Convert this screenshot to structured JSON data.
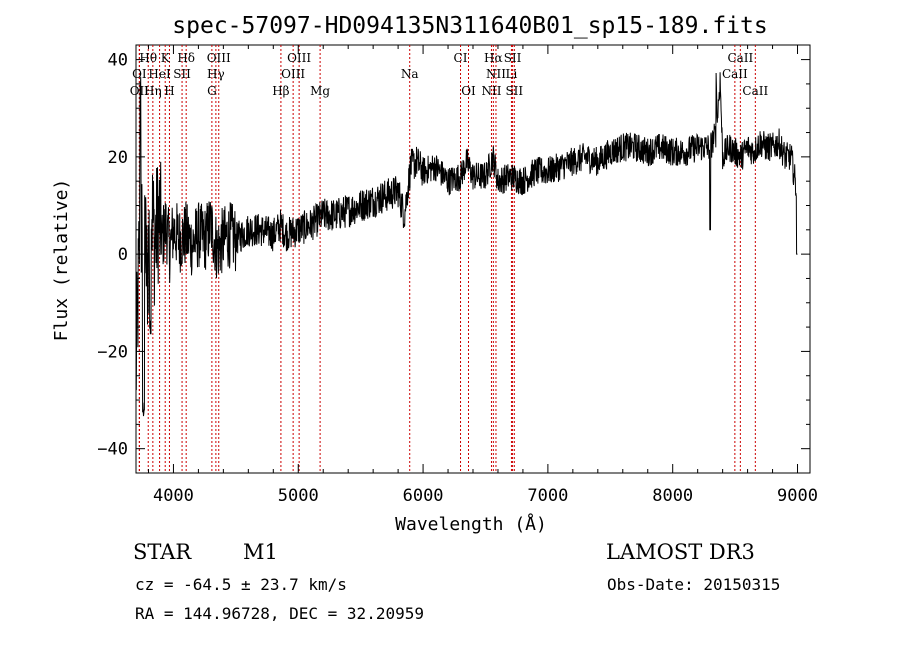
{
  "chart_data": {
    "type": "line",
    "title": "spec-57097-HD094135N311640B01_sp15-189.fits",
    "xlabel": "Wavelength (Å)",
    "ylabel": "Flux (relative)",
    "xlim": [
      3700,
      9100
    ],
    "ylim": [
      -45,
      43
    ],
    "xticks": [
      4000,
      5000,
      6000,
      7000,
      8000,
      9000
    ],
    "yticks": [
      -40,
      -20,
      0,
      20,
      40
    ],
    "grid": false,
    "series": [
      {
        "name": "flux",
        "color": "#000000",
        "x": [
          3700,
          3730,
          3760,
          3790,
          3820,
          3850,
          3880,
          3910,
          3940,
          3970,
          4000,
          4050,
          4100,
          4150,
          4200,
          4250,
          4300,
          4350,
          4400,
          4450,
          4500,
          4600,
          4700,
          4800,
          4860,
          4900,
          5000,
          5100,
          5200,
          5300,
          5400,
          5500,
          5600,
          5700,
          5800,
          5850,
          5900,
          5950,
          6000,
          6100,
          6200,
          6300,
          6350,
          6400,
          6500,
          6560,
          6600,
          6700,
          6800,
          6900,
          7000,
          7100,
          7200,
          7300,
          7400,
          7500,
          7600,
          7700,
          7800,
          7900,
          8000,
          8100,
          8200,
          8300,
          8350,
          8380,
          8400,
          8450,
          8500,
          8550,
          8600,
          8650,
          8700,
          8750,
          8800,
          8850,
          8900,
          8950,
          9000
        ],
        "y": [
          -25,
          5,
          10,
          -5,
          12,
          2,
          8,
          3,
          6,
          1,
          5,
          3,
          4,
          2,
          4,
          3,
          6,
          1,
          3,
          4,
          3,
          5,
          5,
          4,
          6,
          4,
          5,
          6,
          8,
          8,
          9,
          10,
          11,
          12,
          13,
          8,
          18,
          19,
          17,
          18,
          15,
          16,
          19,
          16,
          16,
          20,
          15,
          16,
          15,
          17,
          17,
          18,
          19,
          20,
          19,
          21,
          22,
          22,
          21,
          22,
          21,
          21,
          22,
          22,
          25,
          36,
          20,
          22,
          21,
          20,
          22,
          21,
          23,
          22,
          22,
          23,
          20,
          20,
          12
        ]
      }
    ],
    "spectral_lines": [
      {
        "label": "Hθ",
        "x": 3798,
        "row": 1
      },
      {
        "label": "K",
        "x": 3934,
        "row": 1
      },
      {
        "label": "Hδ",
        "x": 4102,
        "row": 1
      },
      {
        "label": "OIII",
        "x": 4363,
        "row": 1
      },
      {
        "label": "OIII",
        "x": 5007,
        "row": 1
      },
      {
        "label": "CI",
        "x": 6300,
        "row": 1
      },
      {
        "label": "Hα",
        "x": 6563,
        "row": 1
      },
      {
        "label": "SII",
        "x": 6717,
        "row": 1
      },
      {
        "label": "CaII",
        "x": 8542,
        "row": 1
      },
      {
        "label": "OI",
        "x": 3727,
        "row": 2
      },
      {
        "label": "HeI",
        "x": 3889,
        "row": 2
      },
      {
        "label": "SII",
        "x": 4069,
        "row": 2
      },
      {
        "label": "Hγ",
        "x": 4340,
        "row": 2
      },
      {
        "label": "OIII",
        "x": 4959,
        "row": 2
      },
      {
        "label": "Na",
        "x": 5893,
        "row": 2
      },
      {
        "label": "NII",
        "x": 6584,
        "row": 2
      },
      {
        "label": "Li",
        "x": 6708,
        "row": 2
      },
      {
        "label": "CaII",
        "x": 8498,
        "row": 2
      },
      {
        "label": "OII",
        "x": 3727,
        "row": 3
      },
      {
        "label": "Hη",
        "x": 3835,
        "row": 3
      },
      {
        "label": "H",
        "x": 3968,
        "row": 3
      },
      {
        "label": "G",
        "x": 4308,
        "row": 3
      },
      {
        "label": "Hβ",
        "x": 4861,
        "row": 3
      },
      {
        "label": "Mg",
        "x": 5175,
        "row": 3
      },
      {
        "label": "OI",
        "x": 6364,
        "row": 3
      },
      {
        "label": "NII",
        "x": 6548,
        "row": 3
      },
      {
        "label": "SII",
        "x": 6731,
        "row": 3
      },
      {
        "label": "CaII",
        "x": 8662,
        "row": 3
      }
    ]
  },
  "info": {
    "object_class": "STAR",
    "subclass": "M1",
    "survey": "LAMOST DR3",
    "redshift": "cz = -64.5 ± 23.7 km/s",
    "obs_date": "Obs-Date: 20150315",
    "coords": "RA = 144.96728, DEC =  32.20959"
  },
  "colors": {
    "line_marker": "#cc0000",
    "spectrum": "#000000",
    "background": "#ffffff"
  }
}
